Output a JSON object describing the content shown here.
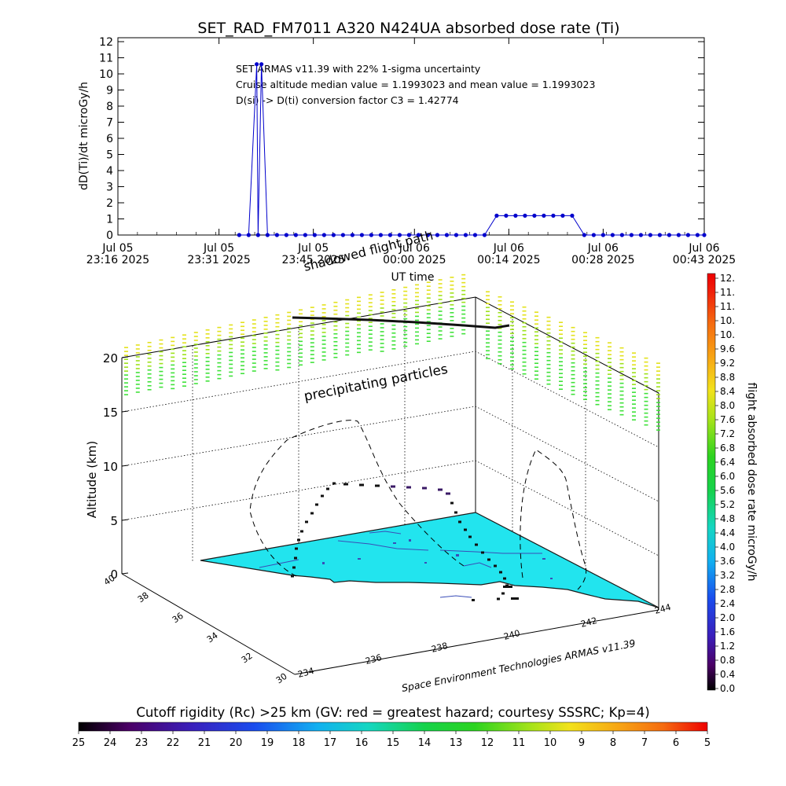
{
  "title": "SET_RAD_FM7011  A320 N424UA absorbed dose rate (Ti)",
  "chart_data": [
    {
      "type": "line",
      "title": "SET_RAD_FM7011  A320 N424UA absorbed dose rate (Ti)",
      "xlabel": "UT time",
      "ylabel": "dD(Ti)/dt microGy/h",
      "ylim": [
        0,
        12
      ],
      "y_ticks": [
        "0",
        "1",
        "2",
        "3",
        "4",
        "5",
        "6",
        "7",
        "8",
        "9",
        "10",
        "11",
        "12"
      ],
      "x_ticks": [
        {
          "l1": "Jul 05",
          "l2": "23:16 2025"
        },
        {
          "l1": "Jul 05",
          "l2": "23:31 2025"
        },
        {
          "l1": "Jul 05",
          "l2": "23:45 2025"
        },
        {
          "l1": "Jul 06",
          "l2": "00:00 2025"
        },
        {
          "l1": "Jul 06",
          "l2": "00:14 2025"
        },
        {
          "l1": "Jul 06",
          "l2": "00:28 2025"
        },
        {
          "l1": "Jul 06",
          "l2": "00:43 2025"
        }
      ],
      "x_minutes_from_start": [
        0,
        15,
        29,
        44,
        58,
        72,
        87
      ],
      "annotations": [
        "SET ARMAS v11.39 with 22% 1-sigma uncertainty",
        "Cruise altitude median value = 1.1993023 and mean value = 1.1993023",
        "D(si) -> D(ti) conversion factor C3 = 1.42774"
      ],
      "series": [
        {
          "color": "#0000cc",
          "points": [
            [
              20.6,
              10.6
            ],
            [
              21.3,
              10.6
            ],
            [
              18.0,
              0.0
            ],
            [
              19.4,
              0.0
            ],
            [
              20.8,
              0.0
            ],
            [
              22.2,
              0.0
            ],
            [
              23.6,
              0.0
            ],
            [
              25.0,
              0.0
            ],
            [
              26.4,
              0.0
            ],
            [
              27.8,
              0.0
            ],
            [
              29.2,
              0.0
            ],
            [
              30.6,
              0.0
            ],
            [
              32.0,
              0.0
            ],
            [
              33.4,
              0.0
            ],
            [
              34.8,
              0.0
            ],
            [
              36.2,
              0.0
            ],
            [
              37.6,
              0.0
            ],
            [
              39.0,
              0.0
            ],
            [
              40.4,
              0.0
            ],
            [
              41.8,
              0.0
            ],
            [
              43.2,
              0.0
            ],
            [
              44.6,
              0.0
            ],
            [
              46.0,
              0.0
            ],
            [
              47.4,
              0.0
            ],
            [
              48.8,
              0.0
            ],
            [
              50.2,
              0.0
            ],
            [
              51.6,
              0.0
            ],
            [
              53.0,
              0.0
            ],
            [
              54.4,
              0.0
            ],
            [
              56.2,
              1.2
            ],
            [
              57.6,
              1.2
            ],
            [
              59.0,
              1.2
            ],
            [
              60.4,
              1.2
            ],
            [
              61.8,
              1.2
            ],
            [
              63.2,
              1.2
            ],
            [
              64.6,
              1.2
            ],
            [
              66.0,
              1.2
            ],
            [
              67.4,
              1.2
            ],
            [
              69.2,
              0.0
            ],
            [
              70.6,
              0.0
            ],
            [
              72.0,
              0.0
            ],
            [
              73.4,
              0.0
            ],
            [
              74.8,
              0.0
            ],
            [
              76.2,
              0.0
            ],
            [
              77.6,
              0.0
            ],
            [
              79.0,
              0.0
            ],
            [
              80.4,
              0.0
            ],
            [
              81.8,
              0.0
            ],
            [
              83.2,
              0.0
            ],
            [
              84.6,
              0.0
            ],
            [
              86.0,
              0.0
            ],
            [
              87.0,
              0.0
            ]
          ]
        }
      ]
    },
    {
      "type": "other",
      "zlabel": "Altitude (km)",
      "z_ticks": [
        "0",
        "5",
        "10",
        "15",
        "20"
      ],
      "lat_ticks": [
        "30",
        "32",
        "34",
        "36",
        "38",
        "40"
      ],
      "lon_ticks": [
        "234",
        "236",
        "238",
        "240",
        "242",
        "244"
      ],
      "labels": [
        "precipitating particles",
        "shadowed flight path",
        "Space Environment Technologies ARMAS v11.39"
      ],
      "surface_color": "#22e4ee",
      "particle_colors": [
        "#e3e21d",
        "#9ee21c",
        "#41e23b"
      ]
    },
    {
      "type": "heatmap",
      "title": "flight absorbed dose rate microGy/h",
      "ticks": [
        "12.",
        "11.",
        "11.",
        "10.",
        "10.",
        "9.6",
        "9.2",
        "8.8",
        "8.4",
        "8.0",
        "7.6",
        "7.2",
        "6.8",
        "6.4",
        "6.0",
        "5.6",
        "5.2",
        "4.8",
        "4.4",
        "4.0",
        "3.6",
        "3.2",
        "2.8",
        "2.4",
        "2.0",
        "1.6",
        "1.2",
        "0.8",
        "0.4",
        "0.0"
      ]
    },
    {
      "type": "heatmap",
      "title": "Cutoff rigidity (Rc) >25 km (GV: red = greatest hazard; courtesy SSSRC; Kp=4)",
      "ticks": [
        "25",
        "24",
        "23",
        "22",
        "21",
        "20",
        "19",
        "18",
        "17",
        "16",
        "15",
        "14",
        "13",
        "12",
        "11",
        "10",
        "9",
        "8",
        "7",
        "6",
        "5"
      ]
    }
  ]
}
